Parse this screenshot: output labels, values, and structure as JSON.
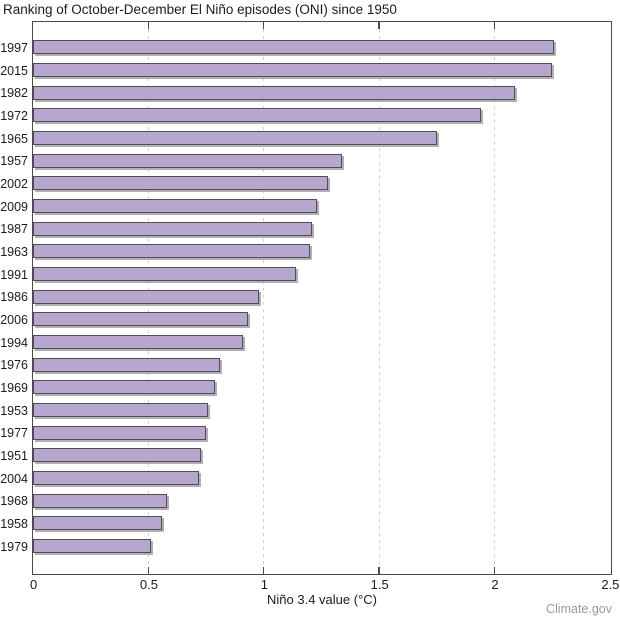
{
  "page": {
    "credit": "Climate.gov"
  },
  "chart_data": {
    "type": "bar",
    "orientation": "horizontal",
    "title": "Ranking of October-December El Niño episodes (ONI) since 1950",
    "xlabel": "Niño 3.4 value (°C)",
    "ylabel": "",
    "xlim": [
      0,
      2.5
    ],
    "xticks": [
      0,
      0.5,
      1,
      1.5,
      2,
      2.5
    ],
    "xtick_labels": [
      "0",
      "0.5",
      "1",
      "1.5",
      "2",
      "2.5"
    ],
    "gridlines_at": [
      0.5,
      1,
      1.5,
      2
    ],
    "grid_style": "dashed-vertical",
    "legend_position": "none",
    "bar_fill_color": "#b7a7cf",
    "bar_edge_color": "#4e4e54",
    "axis_color": "#4a4a4a",
    "categories": [
      "1997",
      "2015",
      "1982",
      "1972",
      "1965",
      "1957",
      "2002",
      "2009",
      "1987",
      "1963",
      "1991",
      "1986",
      "2006",
      "1994",
      "1976",
      "1969",
      "1953",
      "1977",
      "1951",
      "2004",
      "1968",
      "1958",
      "1979"
    ],
    "values": [
      2.26,
      2.25,
      2.09,
      1.94,
      1.75,
      1.34,
      1.28,
      1.23,
      1.21,
      1.2,
      1.14,
      0.98,
      0.93,
      0.91,
      0.81,
      0.79,
      0.76,
      0.75,
      0.73,
      0.72,
      0.58,
      0.56,
      0.51
    ],
    "credit": "Climate.gov"
  }
}
